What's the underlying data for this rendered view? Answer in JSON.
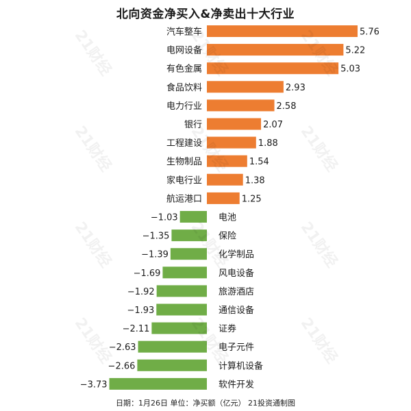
{
  "chart_data": {
    "type": "bar",
    "orientation": "horizontal",
    "title": "北向资金净买入&净卖出十大行业",
    "footer": "日期：1月26日 单位：净买额（亿元） 21投资通制图",
    "watermark": "21财经",
    "colors": {
      "positive": "#ed7d31",
      "negative": "#70ad47"
    },
    "categories": [
      "汽车整车",
      "电网设备",
      "有色金属",
      "食品饮料",
      "电力行业",
      "银行",
      "工程建设",
      "生物制品",
      "家电行业",
      "航运港口",
      "电池",
      "保险",
      "化学制品",
      "风电设备",
      "旅游酒店",
      "通信设备",
      "证券",
      "电子元件",
      "计算机设备",
      "软件开发"
    ],
    "values": [
      5.76,
      5.22,
      5.03,
      2.93,
      2.58,
      2.07,
      1.88,
      1.54,
      1.38,
      1.25,
      -1.03,
      -1.35,
      -1.39,
      -1.69,
      -1.92,
      -1.93,
      -2.11,
      -2.63,
      -2.66,
      -3.73
    ],
    "value_labels": [
      "5.76",
      "5.22",
      "5.03",
      "2.93",
      "2.58",
      "2.07",
      "1.88",
      "1.54",
      "1.38",
      "1.25",
      "−1.03",
      "−1.35",
      "−1.39",
      "−1.69",
      "−1.92",
      "−1.93",
      "−2.11",
      "−2.63",
      "−2.66",
      "−3.73"
    ],
    "xlim": [
      -3.73,
      5.76
    ],
    "grid": false,
    "legend": "none"
  }
}
